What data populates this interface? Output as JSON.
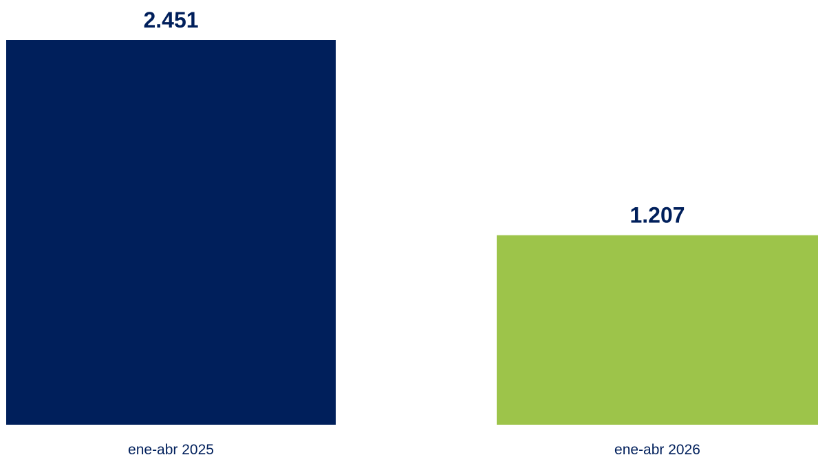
{
  "chart_data": {
    "type": "bar",
    "categories": [
      "ene-abr 2025",
      "ene-abr 2026"
    ],
    "values": [
      2451,
      1207
    ],
    "value_labels": [
      "2.451",
      "1.207"
    ],
    "colors": [
      "#001f5b",
      "#9dc44a"
    ],
    "title": "",
    "xlabel": "",
    "ylabel": "",
    "ylim": [
      0,
      2451
    ],
    "grid": false,
    "legend": "none"
  }
}
